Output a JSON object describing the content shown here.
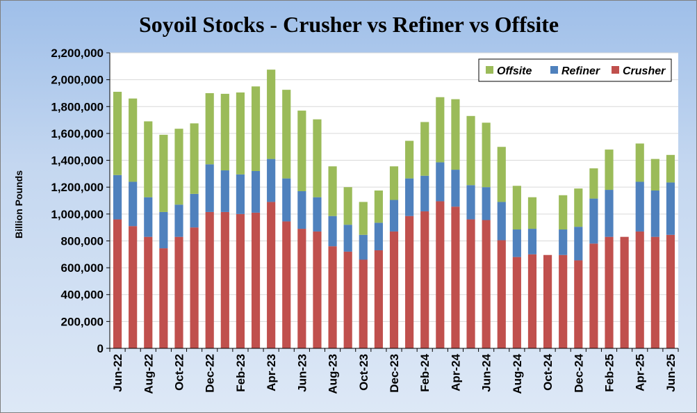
{
  "chart_data": {
    "type": "stacked-bar",
    "title": "Soyoil Stocks - Crusher vs Refiner vs Offsite",
    "ylabel": "Billion Pounds",
    "xlabel": "",
    "ylim": [
      0,
      2200000
    ],
    "ytick_step": 200000,
    "y_tick_labels": [
      "0",
      "200,000",
      "400,000",
      "600,000",
      "800,000",
      "1,000,000",
      "1,200,000",
      "1,400,000",
      "1,600,000",
      "1,800,000",
      "2,000,000",
      "2,200,000"
    ],
    "categories": [
      "Jun-22",
      "Jul-22",
      "Aug-22",
      "Sep-22",
      "Oct-22",
      "Nov-22",
      "Dec-22",
      "Jan-23",
      "Feb-23",
      "Mar-23",
      "Apr-23",
      "May-23",
      "Jun-23",
      "Jul-23",
      "Aug-23",
      "Sep-23",
      "Oct-23",
      "Nov-23",
      "Dec-23",
      "Jan-24",
      "Feb-24",
      "Mar-24",
      "Apr-24",
      "May-24",
      "Jun-24",
      "Jul-24",
      "Aug-24",
      "Sep-24",
      "Oct-24",
      "Nov-24",
      "Dec-24",
      "Jan-25",
      "Feb-25",
      "Mar-25",
      "Apr-25",
      "May-25",
      "Jun-25"
    ],
    "x_tick_labels": [
      "Jun-22",
      "",
      "Aug-22",
      "",
      "Oct-22",
      "",
      "Dec-22",
      "",
      "Feb-23",
      "",
      "Apr-23",
      "",
      "Jun-23",
      "",
      "Aug-23",
      "",
      "Oct-23",
      "",
      "Dec-23",
      "",
      "Feb-24",
      "",
      "Apr-24",
      "",
      "Jun-24",
      "",
      "Aug-24",
      "",
      "Oct-24",
      "",
      "Dec-24",
      "",
      "Feb-25",
      "",
      "Apr-25",
      "",
      "Jun-25"
    ],
    "legend_position": "top-right",
    "legend_order": [
      "Offsite",
      "Refiner",
      "Crusher"
    ],
    "series": [
      {
        "name": "Crusher",
        "color": "#c0504d",
        "values": [
          960000,
          910000,
          830000,
          745000,
          830000,
          900000,
          1015000,
          1015000,
          1000000,
          1010000,
          1090000,
          945000,
          890000,
          870000,
          760000,
          720000,
          660000,
          730000,
          870000,
          985000,
          1020000,
          1095000,
          1055000,
          960000,
          955000,
          805000,
          680000,
          700000,
          695000,
          695000,
          655000,
          780000,
          830000,
          830000,
          870000,
          830000,
          845000
        ]
      },
      {
        "name": "Refiner",
        "color": "#4f81bd",
        "values": [
          330000,
          330000,
          295000,
          270000,
          240000,
          250000,
          355000,
          310000,
          295000,
          310000,
          320000,
          320000,
          280000,
          255000,
          225000,
          200000,
          185000,
          205000,
          235000,
          280000,
          265000,
          290000,
          275000,
          255000,
          245000,
          285000,
          205000,
          190000,
          0,
          190000,
          250000,
          335000,
          350000,
          0,
          370000,
          345000,
          390000
        ]
      },
      {
        "name": "Offsite",
        "color": "#9bbb59",
        "values": [
          620000,
          620000,
          565000,
          575000,
          565000,
          525000,
          530000,
          570000,
          610000,
          630000,
          665000,
          660000,
          600000,
          580000,
          370000,
          280000,
          245000,
          240000,
          250000,
          280000,
          400000,
          485000,
          525000,
          515000,
          480000,
          410000,
          325000,
          235000,
          0,
          255000,
          285000,
          225000,
          300000,
          0,
          285000,
          235000,
          205000
        ]
      }
    ]
  }
}
